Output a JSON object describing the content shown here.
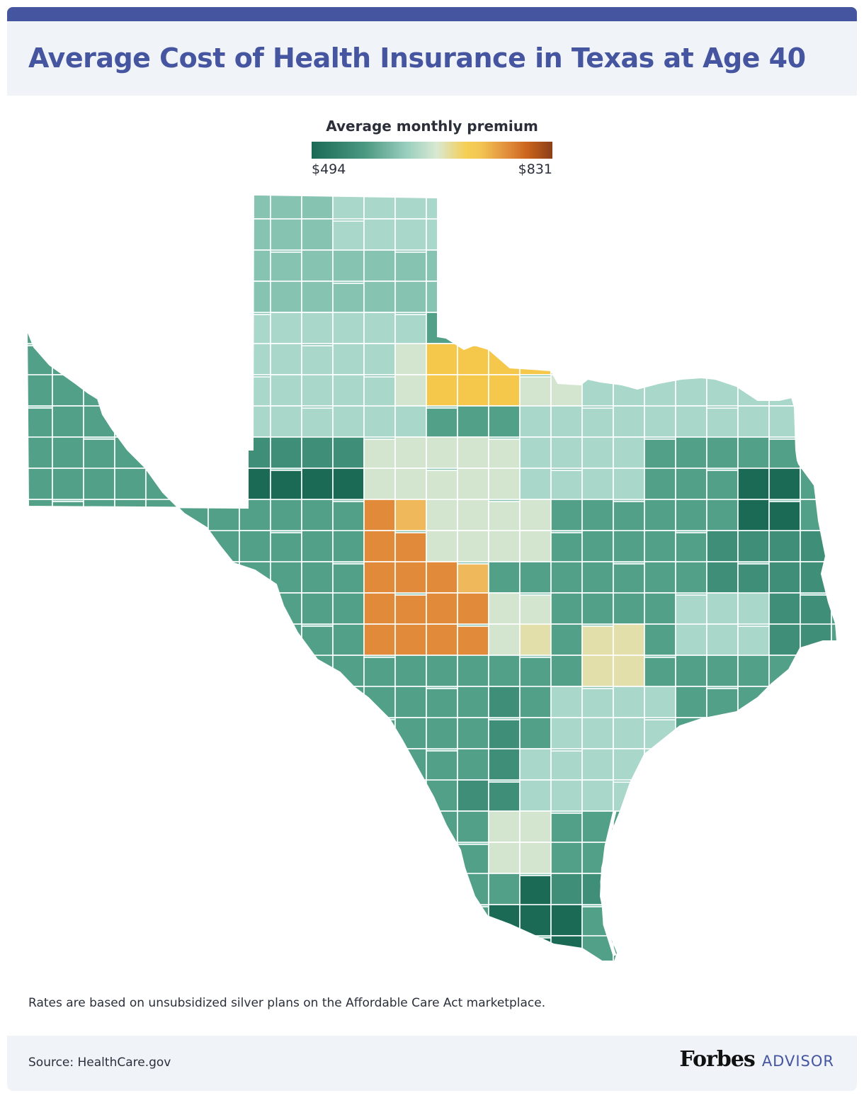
{
  "header": {
    "title": "Average Cost of Health Insurance in Texas at Age 40"
  },
  "legend": {
    "title": "Average monthly premium",
    "min_label": "$494",
    "max_label": "$831",
    "gradient_colors": [
      "#1a6a56",
      "#4a9880",
      "#9dd0c0",
      "#d8e8d2",
      "#f5cf55",
      "#e08a3a",
      "#c8621c",
      "#8a3e18"
    ]
  },
  "map": {
    "region": "Texas",
    "colors": {
      "teal_dark": "#1a6a56",
      "teal_mid": "#3f8f78",
      "teal": "#52a088",
      "teal_light": "#86c3b1",
      "mint": "#a9d7c9",
      "pale": "#d4e5cf",
      "sand": "#e2dfaa",
      "yellow": "#f5c84c",
      "gold": "#efb85a",
      "orange": "#e08a3a",
      "burnt": "#d0702a",
      "brown": "#8a3e18"
    }
  },
  "note": "Rates are based on unsubsidized silver plans on the Affordable Care Act marketplace.",
  "footer": {
    "source": "Source: HealthCare.gov",
    "brand": "Forbes",
    "brand_suffix": "ADVISOR"
  }
}
